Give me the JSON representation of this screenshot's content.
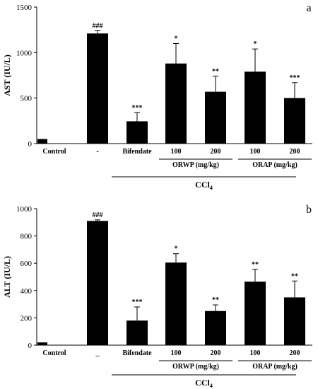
{
  "chart_data": [
    {
      "type": "bar",
      "panel_label": "a",
      "ylabel": "AST (IU/L)",
      "ylim": [
        0,
        1500
      ],
      "yticks": [
        0,
        500,
        1000,
        1500
      ],
      "categories": [
        "Control",
        "-",
        "Bifendate",
        "100",
        "200",
        "100",
        "200"
      ],
      "values": [
        50,
        1210,
        245,
        880,
        570,
        790,
        500
      ],
      "errors": [
        0,
        30,
        95,
        220,
        170,
        250,
        170
      ],
      "significance": [
        "",
        "###",
        "***",
        "*",
        "**",
        "*",
        "***"
      ],
      "groups": [
        {
          "label": "ORWP (mg/kg)",
          "categories": [
            3,
            4
          ]
        },
        {
          "label": "ORAP (mg/kg)",
          "categories": [
            5,
            6
          ]
        }
      ],
      "treatment": {
        "label": "CCl",
        "subscript": "4",
        "categories": [
          1,
          6
        ]
      }
    },
    {
      "type": "bar",
      "panel_label": "b",
      "ylabel": "ALT (IU/L)",
      "ylim": [
        0,
        1000
      ],
      "yticks": [
        0,
        200,
        400,
        600,
        800,
        1000
      ],
      "categories": [
        "Control",
        "_",
        "Bifendate",
        "100",
        "200",
        "100",
        "200"
      ],
      "values": [
        20,
        910,
        180,
        605,
        250,
        465,
        350
      ],
      "errors": [
        0,
        8,
        100,
        65,
        45,
        90,
        120
      ],
      "significance": [
        "",
        "###",
        "***",
        "*",
        "**",
        "**",
        "**"
      ],
      "groups": [
        {
          "label": "ORWP (mg/kg)",
          "categories": [
            3,
            4
          ]
        },
        {
          "label": "ORAP (mg/kg)",
          "categories": [
            5,
            6
          ]
        }
      ],
      "treatment": {
        "label": "CCl",
        "subscript": "4",
        "categories": [
          1,
          6
        ]
      }
    }
  ]
}
